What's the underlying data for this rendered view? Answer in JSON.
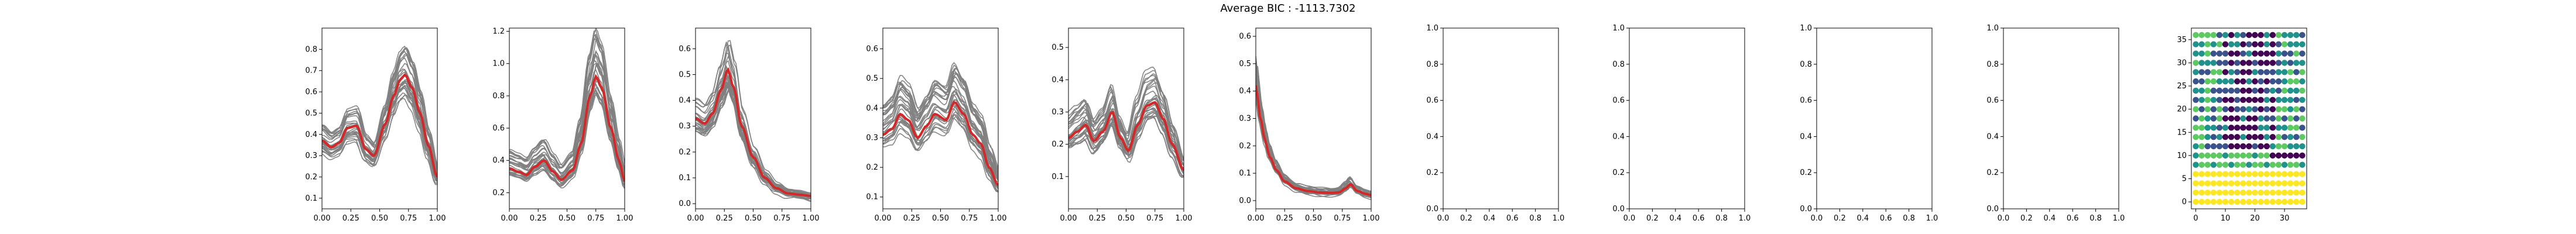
{
  "figure": {
    "title": "Average BIC : -1113.7302"
  },
  "chart_data": [
    {
      "type": "line",
      "xlim": [
        0,
        1
      ],
      "ylim": [
        0.05,
        0.9
      ],
      "xticks": [
        "0.00",
        "0.25",
        "0.50",
        "0.75",
        "1.00"
      ],
      "yticks": [
        "0.1",
        "0.2",
        "0.3",
        "0.4",
        "0.5",
        "0.6",
        "0.7",
        "0.8"
      ],
      "mean": {
        "x": [
          0,
          0.08,
          0.15,
          0.22,
          0.3,
          0.38,
          0.45,
          0.55,
          0.62,
          0.68,
          0.72,
          0.78,
          0.85,
          0.92,
          1.0
        ],
        "y": [
          0.37,
          0.34,
          0.36,
          0.43,
          0.44,
          0.33,
          0.3,
          0.45,
          0.58,
          0.66,
          0.68,
          0.62,
          0.5,
          0.35,
          0.2
        ]
      },
      "spread_low": 0.1,
      "spread_high": 0.14,
      "n_curves": 30
    },
    {
      "type": "line",
      "xlim": [
        0,
        1
      ],
      "ylim": [
        0.1,
        1.22
      ],
      "xticks": [
        "0.00",
        "0.25",
        "0.50",
        "0.75",
        "1.00"
      ],
      "yticks": [
        "0.2",
        "0.4",
        "0.6",
        "0.8",
        "1.0",
        "1.2"
      ],
      "mean": {
        "x": [
          0,
          0.08,
          0.15,
          0.22,
          0.3,
          0.38,
          0.45,
          0.55,
          0.62,
          0.7,
          0.75,
          0.8,
          0.88,
          0.95,
          1.0
        ],
        "y": [
          0.35,
          0.33,
          0.31,
          0.36,
          0.4,
          0.33,
          0.28,
          0.34,
          0.5,
          0.8,
          0.92,
          0.85,
          0.6,
          0.4,
          0.27
        ]
      },
      "spread_low": 0.08,
      "spread_high": 0.22,
      "n_curves": 30
    },
    {
      "type": "line",
      "xlim": [
        0,
        1
      ],
      "ylim": [
        -0.02,
        0.68
      ],
      "xticks": [
        "0.00",
        "0.25",
        "0.50",
        "0.75",
        "1.00"
      ],
      "yticks": [
        "0.0",
        "0.1",
        "0.2",
        "0.3",
        "0.4",
        "0.5",
        "0.6"
      ],
      "mean": {
        "x": [
          0,
          0.08,
          0.15,
          0.22,
          0.28,
          0.33,
          0.4,
          0.5,
          0.6,
          0.7,
          0.8,
          0.9,
          1.0
        ],
        "y": [
          0.33,
          0.31,
          0.35,
          0.44,
          0.52,
          0.45,
          0.3,
          0.18,
          0.1,
          0.06,
          0.04,
          0.035,
          0.03
        ]
      },
      "spread_low": 0.1,
      "spread_high": 0.14,
      "n_curves": 30
    },
    {
      "type": "line",
      "xlim": [
        0,
        1
      ],
      "ylim": [
        0.06,
        0.67
      ],
      "xticks": [
        "0.00",
        "0.25",
        "0.50",
        "0.75",
        "1.00"
      ],
      "yticks": [
        "0.1",
        "0.2",
        "0.3",
        "0.4",
        "0.5",
        "0.6"
      ],
      "mean": {
        "x": [
          0,
          0.08,
          0.15,
          0.22,
          0.3,
          0.38,
          0.45,
          0.55,
          0.62,
          0.7,
          0.78,
          0.85,
          0.92,
          1.0
        ],
        "y": [
          0.31,
          0.33,
          0.38,
          0.36,
          0.3,
          0.34,
          0.38,
          0.36,
          0.42,
          0.38,
          0.31,
          0.28,
          0.2,
          0.14
        ]
      },
      "spread_low": 0.1,
      "spread_high": 0.2,
      "n_curves": 30
    },
    {
      "type": "line",
      "xlim": [
        0,
        1
      ],
      "ylim": [
        0.0,
        0.56
      ],
      "xticks": [
        "0.00",
        "0.25",
        "0.50",
        "0.75",
        "1.00"
      ],
      "yticks": [
        "0.1",
        "0.2",
        "0.3",
        "0.4",
        "0.5"
      ],
      "mean": {
        "x": [
          0,
          0.08,
          0.15,
          0.22,
          0.3,
          0.38,
          0.45,
          0.52,
          0.6,
          0.68,
          0.75,
          0.82,
          0.9,
          1.0
        ],
        "y": [
          0.22,
          0.24,
          0.26,
          0.21,
          0.24,
          0.3,
          0.22,
          0.18,
          0.26,
          0.32,
          0.33,
          0.28,
          0.2,
          0.12
        ]
      },
      "spread_low": 0.08,
      "spread_high": 0.2,
      "n_curves": 30
    },
    {
      "type": "line",
      "xlim": [
        0,
        1
      ],
      "ylim": [
        -0.03,
        0.63
      ],
      "xticks": [
        "0.00",
        "0.25",
        "0.50",
        "0.75",
        "1.00"
      ],
      "yticks": [
        "0.0",
        "0.1",
        "0.2",
        "0.3",
        "0.4",
        "0.5",
        "0.6"
      ],
      "mean": {
        "x": [
          0,
          0.04,
          0.08,
          0.12,
          0.18,
          0.25,
          0.35,
          0.45,
          0.55,
          0.65,
          0.72,
          0.78,
          0.82,
          0.88,
          0.95,
          1.0
        ],
        "y": [
          0.42,
          0.3,
          0.22,
          0.16,
          0.11,
          0.07,
          0.045,
          0.035,
          0.03,
          0.028,
          0.03,
          0.045,
          0.06,
          0.035,
          0.025,
          0.02
        ]
      },
      "spread_low": 0.04,
      "spread_high": 0.18,
      "n_curves": 30
    },
    {
      "type": "line",
      "empty": true,
      "xlim": [
        0,
        1
      ],
      "ylim": [
        0,
        1
      ],
      "xticks": [
        "0.0",
        "0.2",
        "0.4",
        "0.6",
        "0.8",
        "1.0"
      ],
      "yticks": [
        "0.0",
        "0.2",
        "0.4",
        "0.6",
        "0.8",
        "1.0"
      ]
    },
    {
      "type": "line",
      "empty": true,
      "xlim": [
        0,
        1
      ],
      "ylim": [
        0,
        1
      ],
      "xticks": [
        "0.0",
        "0.2",
        "0.4",
        "0.6",
        "0.8",
        "1.0"
      ],
      "yticks": [
        "0.0",
        "0.2",
        "0.4",
        "0.6",
        "0.8",
        "1.0"
      ]
    },
    {
      "type": "line",
      "empty": true,
      "xlim": [
        0,
        1
      ],
      "ylim": [
        0,
        1
      ],
      "xticks": [
        "0.0",
        "0.2",
        "0.4",
        "0.6",
        "0.8",
        "1.0"
      ],
      "yticks": [
        "0.0",
        "0.2",
        "0.4",
        "0.6",
        "0.8",
        "1.0"
      ]
    },
    {
      "type": "line",
      "empty": true,
      "xlim": [
        0,
        1
      ],
      "ylim": [
        0,
        1
      ],
      "xticks": [
        "0.0",
        "0.2",
        "0.4",
        "0.6",
        "0.8",
        "1.0"
      ],
      "yticks": [
        "0.0",
        "0.2",
        "0.4",
        "0.6",
        "0.8",
        "1.0"
      ]
    },
    {
      "type": "scatter",
      "xlim": [
        -1.5,
        37.5
      ],
      "ylim": [
        -1.5,
        37.5
      ],
      "xticks": [
        "0",
        "10",
        "20",
        "30"
      ],
      "yticks": [
        "0",
        "5",
        "10",
        "15",
        "20",
        "25",
        "30",
        "35"
      ],
      "grid_size": 36,
      "step": 2,
      "palette": [
        "#440154",
        "#3b528b",
        "#21918c",
        "#5ec962",
        "#fde725"
      ]
    }
  ],
  "colors": {
    "mean_line": "#d62728",
    "member_lines": "#7f7f7f"
  }
}
